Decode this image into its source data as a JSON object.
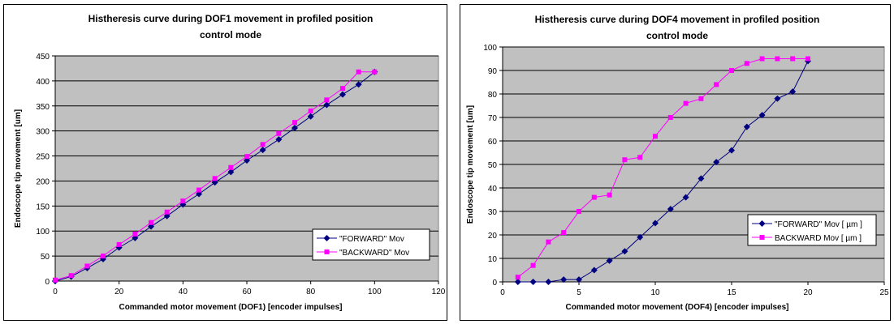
{
  "chart_data": [
    {
      "type": "line",
      "title": "Histheresis curve during DOF1 movement in profiled position control mode",
      "title_lines": [
        "Histheresis curve during DOF1 movement in profiled position",
        "control mode"
      ],
      "xlabel": "Commanded motor movement (DOF1) [encoder impulses]",
      "ylabel": "Endoscope tip movement [um]",
      "xlim": [
        0,
        120
      ],
      "ylim": [
        0,
        450
      ],
      "xticks": [
        0,
        20,
        40,
        60,
        80,
        100,
        120
      ],
      "yticks": [
        0,
        50,
        100,
        150,
        200,
        250,
        300,
        350,
        400,
        450
      ],
      "plot_background": "#c0c0c0",
      "grid": true,
      "legend_position": "bottom-right",
      "series": [
        {
          "name": "\"FORWARD\" Mov",
          "color": "#000080",
          "marker": "diamond",
          "x": [
            0,
            5,
            10,
            15,
            20,
            25,
            30,
            35,
            40,
            45,
            50,
            55,
            60,
            65,
            70,
            75,
            80,
            85,
            90,
            95,
            100
          ],
          "y": [
            0,
            9,
            26,
            44,
            67,
            86,
            109,
            130,
            153,
            174,
            197,
            218,
            241,
            262,
            283,
            306,
            329,
            352,
            373,
            393,
            418
          ]
        },
        {
          "name": "\"BACKWARD\" Mov",
          "color": "#ff00ff",
          "marker": "square",
          "x": [
            0,
            5,
            10,
            15,
            20,
            25,
            30,
            35,
            40,
            45,
            50,
            55,
            60,
            65,
            70,
            75,
            80,
            85,
            90,
            95,
            100
          ],
          "y": [
            2,
            11,
            30,
            50,
            73,
            94,
            117,
            138,
            160,
            182,
            205,
            227,
            249,
            273,
            295,
            317,
            340,
            362,
            385,
            418,
            418
          ]
        }
      ]
    },
    {
      "type": "line",
      "title": "Histheresis curve during DOF4 movement in profiled position control mode",
      "title_lines": [
        "Histheresis curve during DOF4 movement in profiled position",
        "control mode"
      ],
      "xlabel": "Commanded motor movement (DOF4) [encoder impulses]",
      "ylabel": "Endoscope tip movement [um]",
      "xlim": [
        0,
        25
      ],
      "ylim": [
        0,
        100
      ],
      "xticks": [
        0,
        5,
        10,
        15,
        20,
        25
      ],
      "yticks": [
        0,
        10,
        20,
        30,
        40,
        50,
        60,
        70,
        80,
        90,
        100
      ],
      "plot_background": "#c0c0c0",
      "grid": true,
      "legend_position": "bottom-right",
      "series": [
        {
          "name": "\"FORWARD\" Mov [ µm ]",
          "color": "#000080",
          "marker": "diamond",
          "x": [
            1,
            2,
            3,
            4,
            5,
            6,
            7,
            8,
            9,
            10,
            11,
            12,
            13,
            14,
            15,
            16,
            17,
            18,
            19,
            20
          ],
          "y": [
            0,
            0,
            0,
            1,
            1,
            5,
            9,
            13,
            19,
            25,
            31,
            36,
            44,
            51,
            56,
            66,
            71,
            78,
            81,
            94
          ]
        },
        {
          "name": "BACKWARD Mov [ µm ]",
          "color": "#ff00ff",
          "marker": "square",
          "x": [
            1,
            2,
            3,
            4,
            5,
            6,
            7,
            8,
            9,
            10,
            11,
            12,
            13,
            14,
            15,
            16,
            17,
            18,
            19,
            20
          ],
          "y": [
            2,
            7,
            17,
            21,
            30,
            36,
            37,
            52,
            53,
            62,
            70,
            76,
            78,
            84,
            90,
            93,
            95,
            95,
            95,
            95
          ]
        }
      ]
    }
  ]
}
